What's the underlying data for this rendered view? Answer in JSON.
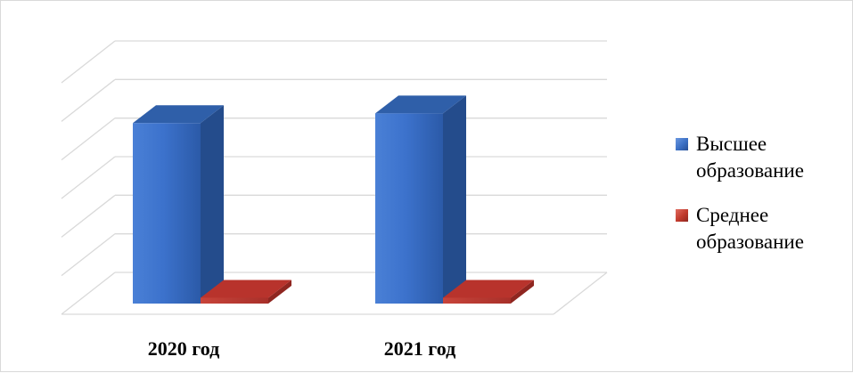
{
  "chart_data": {
    "type": "bar",
    "categories": [
      "2020 год",
      "2021 год"
    ],
    "series": [
      {
        "name": "Высшее образование",
        "values": [
          0.93,
          0.98
        ],
        "color": "#3a6fc4"
      },
      {
        "name": "Среднее образование",
        "values": [
          0.03,
          0.03
        ],
        "color": "#c0392b"
      }
    ],
    "title": "",
    "xlabel": "",
    "ylabel": "",
    "ylim": [
      0,
      1
    ],
    "gridlines": 6,
    "grid": true,
    "legend_position": "right",
    "three_d": true
  }
}
